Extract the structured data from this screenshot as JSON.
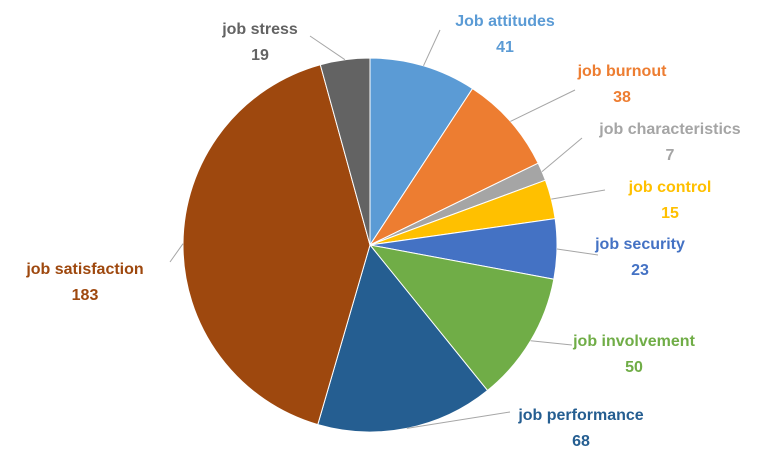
{
  "chart_data": {
    "type": "pie",
    "categories": [
      "Job attitudes",
      "job burnout",
      "job characteristics",
      "job control",
      "job security",
      "job involvement",
      "job performance",
      "job satisfaction",
      "job stress"
    ],
    "values": [
      41,
      38,
      7,
      15,
      23,
      50,
      68,
      183,
      19
    ],
    "colors": [
      "#5b9bd5",
      "#ed7d31",
      "#a5a5a5",
      "#ffc000",
      "#4472c4",
      "#70ad47",
      "#255e91",
      "#9e480e",
      "#636363"
    ]
  }
}
